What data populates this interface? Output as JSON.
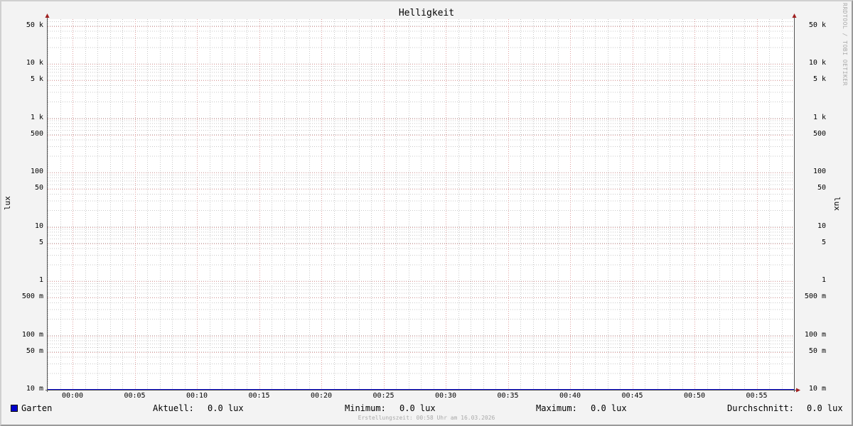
{
  "chart_data": {
    "type": "line",
    "title": "Helligkeit",
    "ylabel": "lux",
    "yscale": "log",
    "ylim": [
      0.01,
      65000
    ],
    "y_ticks": [
      {
        "value": 50000,
        "label": "50 k"
      },
      {
        "value": 10000,
        "label": "10 k"
      },
      {
        "value": 5000,
        "label": "5 k"
      },
      {
        "value": 1000,
        "label": "1 k"
      },
      {
        "value": 500,
        "label": "500"
      },
      {
        "value": 100,
        "label": "100"
      },
      {
        "value": 50,
        "label": "50"
      },
      {
        "value": 10,
        "label": "10"
      },
      {
        "value": 5,
        "label": "5"
      },
      {
        "value": 1,
        "label": "1"
      },
      {
        "value": 0.5,
        "label": "500 m"
      },
      {
        "value": 0.1,
        "label": "100 m"
      },
      {
        "value": 0.05,
        "label": "50 m"
      },
      {
        "value": 0.01,
        "label": "10 m"
      }
    ],
    "xlim": [
      "23:58",
      "00:58"
    ],
    "x_ticks": [
      "00:00",
      "00:05",
      "00:10",
      "00:15",
      "00:20",
      "00:25",
      "00:30",
      "00:35",
      "00:40",
      "00:45",
      "00:50",
      "00:55"
    ],
    "grid": true,
    "series": [
      {
        "name": "Garten",
        "color": "#0000cc",
        "values": [
          0.0
        ]
      }
    ],
    "legend": {
      "current_label": "Aktuell:",
      "current": "0.0 lux",
      "min_label": "Minimum:",
      "min": "0.0 lux",
      "max_label": "Maximum:",
      "max": "0.0 lux",
      "avg_label": "Durchschnitt:",
      "avg": "0.0 lux"
    },
    "watermark": "RRDTOOL / TOBI OETIKER",
    "footer": "Erstellungszeit: 00:58 Uhr am 16.03.2026"
  }
}
